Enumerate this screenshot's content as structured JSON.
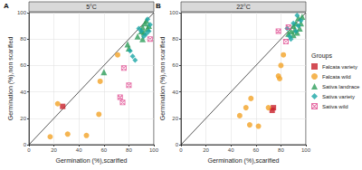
{
  "legend_title": "Groups",
  "chart_data": [
    {
      "type": "scatter",
      "title": "5°C",
      "annotation": "A",
      "x_label": "Germination (%),scarified",
      "y_label": "Germination (%),non scarified",
      "xlim": [
        0,
        100
      ],
      "ylim": [
        0,
        100
      ],
      "xticks": [
        0,
        20,
        40,
        60,
        80,
        100
      ],
      "yticks": [
        0,
        20,
        40,
        60,
        80,
        100
      ],
      "grid": true,
      "legend": "right",
      "series": [
        {
          "name": "Falcata variety",
          "color": "#c8202a",
          "marker": "square",
          "x": [
            27
          ],
          "values": [
            29
          ]
        },
        {
          "name": "Falcata wild",
          "color": "#f2a227",
          "marker": "circle",
          "x": [
            23,
            17,
            31,
            46,
            56,
            57,
            71
          ],
          "values": [
            31,
            6,
            8,
            7,
            23,
            48,
            68
          ]
        },
        {
          "name": "Sativa landrace",
          "color": "#2e9e5a",
          "marker": "triangle",
          "x": [
            60,
            79,
            80,
            87,
            90,
            91,
            92,
            93,
            94,
            95,
            96,
            91
          ],
          "values": [
            55,
            76,
            73,
            82,
            86,
            89,
            85,
            92,
            94,
            88,
            90,
            80
          ]
        },
        {
          "name": "Sativa variety",
          "color": "#1aa6a6",
          "marker": "diamond",
          "x": [
            81,
            83,
            85,
            90,
            92,
            94,
            95,
            97,
            88,
            96
          ],
          "values": [
            71,
            67,
            64,
            86,
            82,
            84,
            95,
            91,
            88,
            86
          ]
        },
        {
          "name": "Sativa wild",
          "color": "#e0488f",
          "marker": "square_cross",
          "x": [
            73,
            75,
            80,
            76,
            97
          ],
          "values": [
            36,
            32,
            45,
            58,
            80
          ]
        }
      ]
    },
    {
      "type": "scatter",
      "title": "22°C",
      "annotation": "B",
      "x_label": "Germination (%),scarified",
      "y_label": "Germination (%),non scarified",
      "xlim": [
        0,
        100
      ],
      "ylim": [
        0,
        100
      ],
      "xticks": [
        0,
        20,
        40,
        60,
        80,
        100
      ],
      "yticks": [
        0,
        20,
        40,
        60,
        80,
        100
      ],
      "grid": true,
      "legend": "right",
      "series": [
        {
          "name": "Falcata variety",
          "color": "#c8202a",
          "marker": "square",
          "x": [
            73,
            74
          ],
          "values": [
            26,
            28
          ]
        },
        {
          "name": "Falcata wild",
          "color": "#f2a227",
          "marker": "circle",
          "x": [
            52,
            55,
            62,
            47,
            56,
            70,
            78,
            80,
            82,
            79
          ],
          "values": [
            28,
            15,
            14,
            22,
            35,
            28,
            52,
            60,
            68,
            50
          ]
        },
        {
          "name": "Sativa landrace",
          "color": "#2e9e5a",
          "marker": "triangle",
          "x": [
            86,
            88,
            90,
            92,
            94,
            95,
            96,
            93,
            91,
            97,
            90
          ],
          "values": [
            84,
            86,
            90,
            92,
            96,
            88,
            92,
            85,
            87,
            97,
            83
          ]
        },
        {
          "name": "Sativa variety",
          "color": "#1aa6a6",
          "marker": "diamond",
          "x": [
            85,
            88,
            92,
            94,
            96,
            90,
            87,
            93
          ],
          "values": [
            88,
            80,
            86,
            90,
            94,
            92,
            82,
            98
          ]
        },
        {
          "name": "Sativa wild",
          "color": "#e0488f",
          "marker": "square_cross",
          "x": [
            78,
            84,
            86
          ],
          "values": [
            86,
            78,
            89
          ]
        }
      ]
    }
  ]
}
